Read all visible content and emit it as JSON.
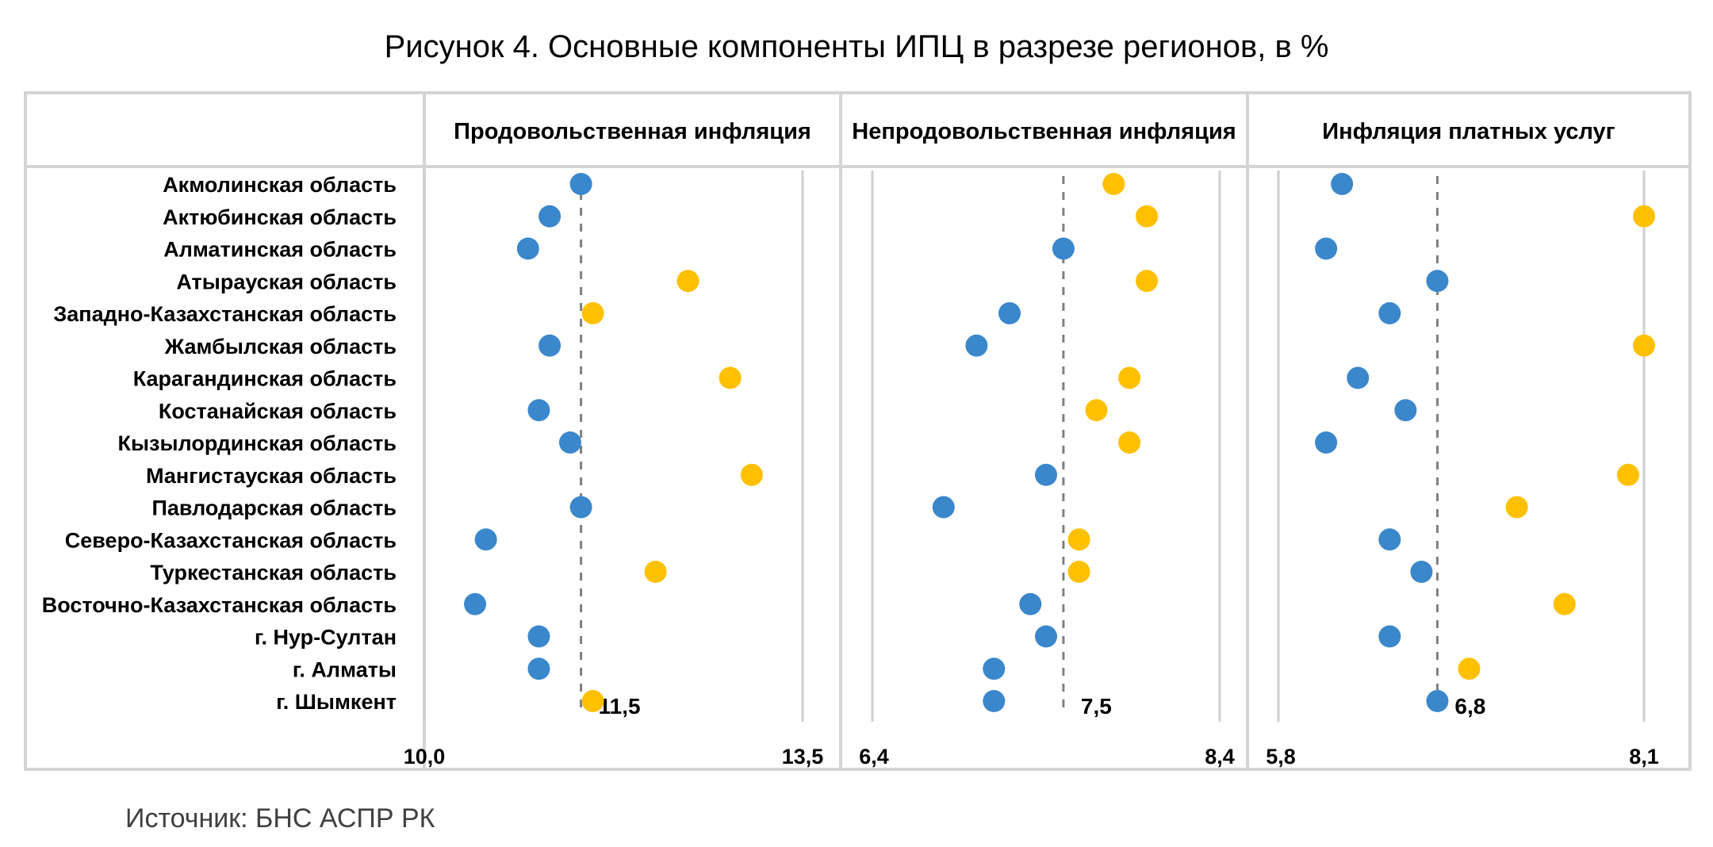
{
  "title": "Рисунок 4. Основные компоненты ИПЦ в разрезе регионов, в %",
  "source": "Источник: БНС АСПР РК",
  "colors": {
    "below_reference": "#3A87CC",
    "above_reference": "#FFC000",
    "frame": "#d4d4d4",
    "axis_line": "#cfcfcf",
    "reference_line": "#7f7f7f"
  },
  "chart_data": {
    "type": "scatter",
    "categories": [
      "Акмолинская область",
      "Актюбинская область",
      "Алматинская область",
      "Атырауская область",
      "Западно-Казахстанская область",
      "Жамбылская область",
      "Карагандинская область",
      "Костанайская область",
      "Кызылординская область",
      "Мангистауская область",
      "Павлодарская область",
      "Северо-Казахстанская область",
      "Туркестанская область",
      "Восточно-Казахстанская область",
      "г. Нур-Султан",
      "г. Алматы",
      "г. Шымкент"
    ],
    "panels": [
      {
        "title": "Продовольственная инфляция",
        "xmin": 10.0,
        "xmax": 13.5,
        "xmin_label": "10,0",
        "xmax_label": "13,5",
        "reference": 11.45,
        "reference_label": "11,5",
        "values": [
          11.45,
          11.16,
          10.96,
          12.44,
          11.56,
          11.16,
          12.83,
          11.06,
          11.35,
          13.03,
          11.45,
          10.57,
          12.14,
          10.47,
          11.06,
          11.06,
          11.56
        ]
      },
      {
        "title": "Непродовольственная инфляция",
        "xmin": 6.4,
        "xmax": 8.4,
        "xmin_label": "6,4",
        "xmax_label": "8,4",
        "reference": 7.5,
        "reference_label": "7,5",
        "values": [
          7.79,
          7.98,
          7.5,
          7.98,
          7.19,
          7.0,
          7.88,
          7.69,
          7.88,
          7.4,
          6.81,
          7.59,
          7.59,
          7.31,
          7.4,
          7.1,
          7.1
        ]
      },
      {
        "title": "Инфляция платных услуг",
        "xmin": 5.8,
        "xmax": 8.1,
        "xmin_label": "5,8",
        "xmax_label": "8,1",
        "reference": 6.8,
        "reference_label": "6,8",
        "values": [
          6.2,
          8.1,
          6.1,
          6.8,
          6.5,
          8.1,
          6.3,
          6.6,
          6.1,
          8.0,
          7.3,
          6.5,
          6.7,
          7.6,
          6.5,
          7.0,
          6.8
        ]
      }
    ]
  }
}
